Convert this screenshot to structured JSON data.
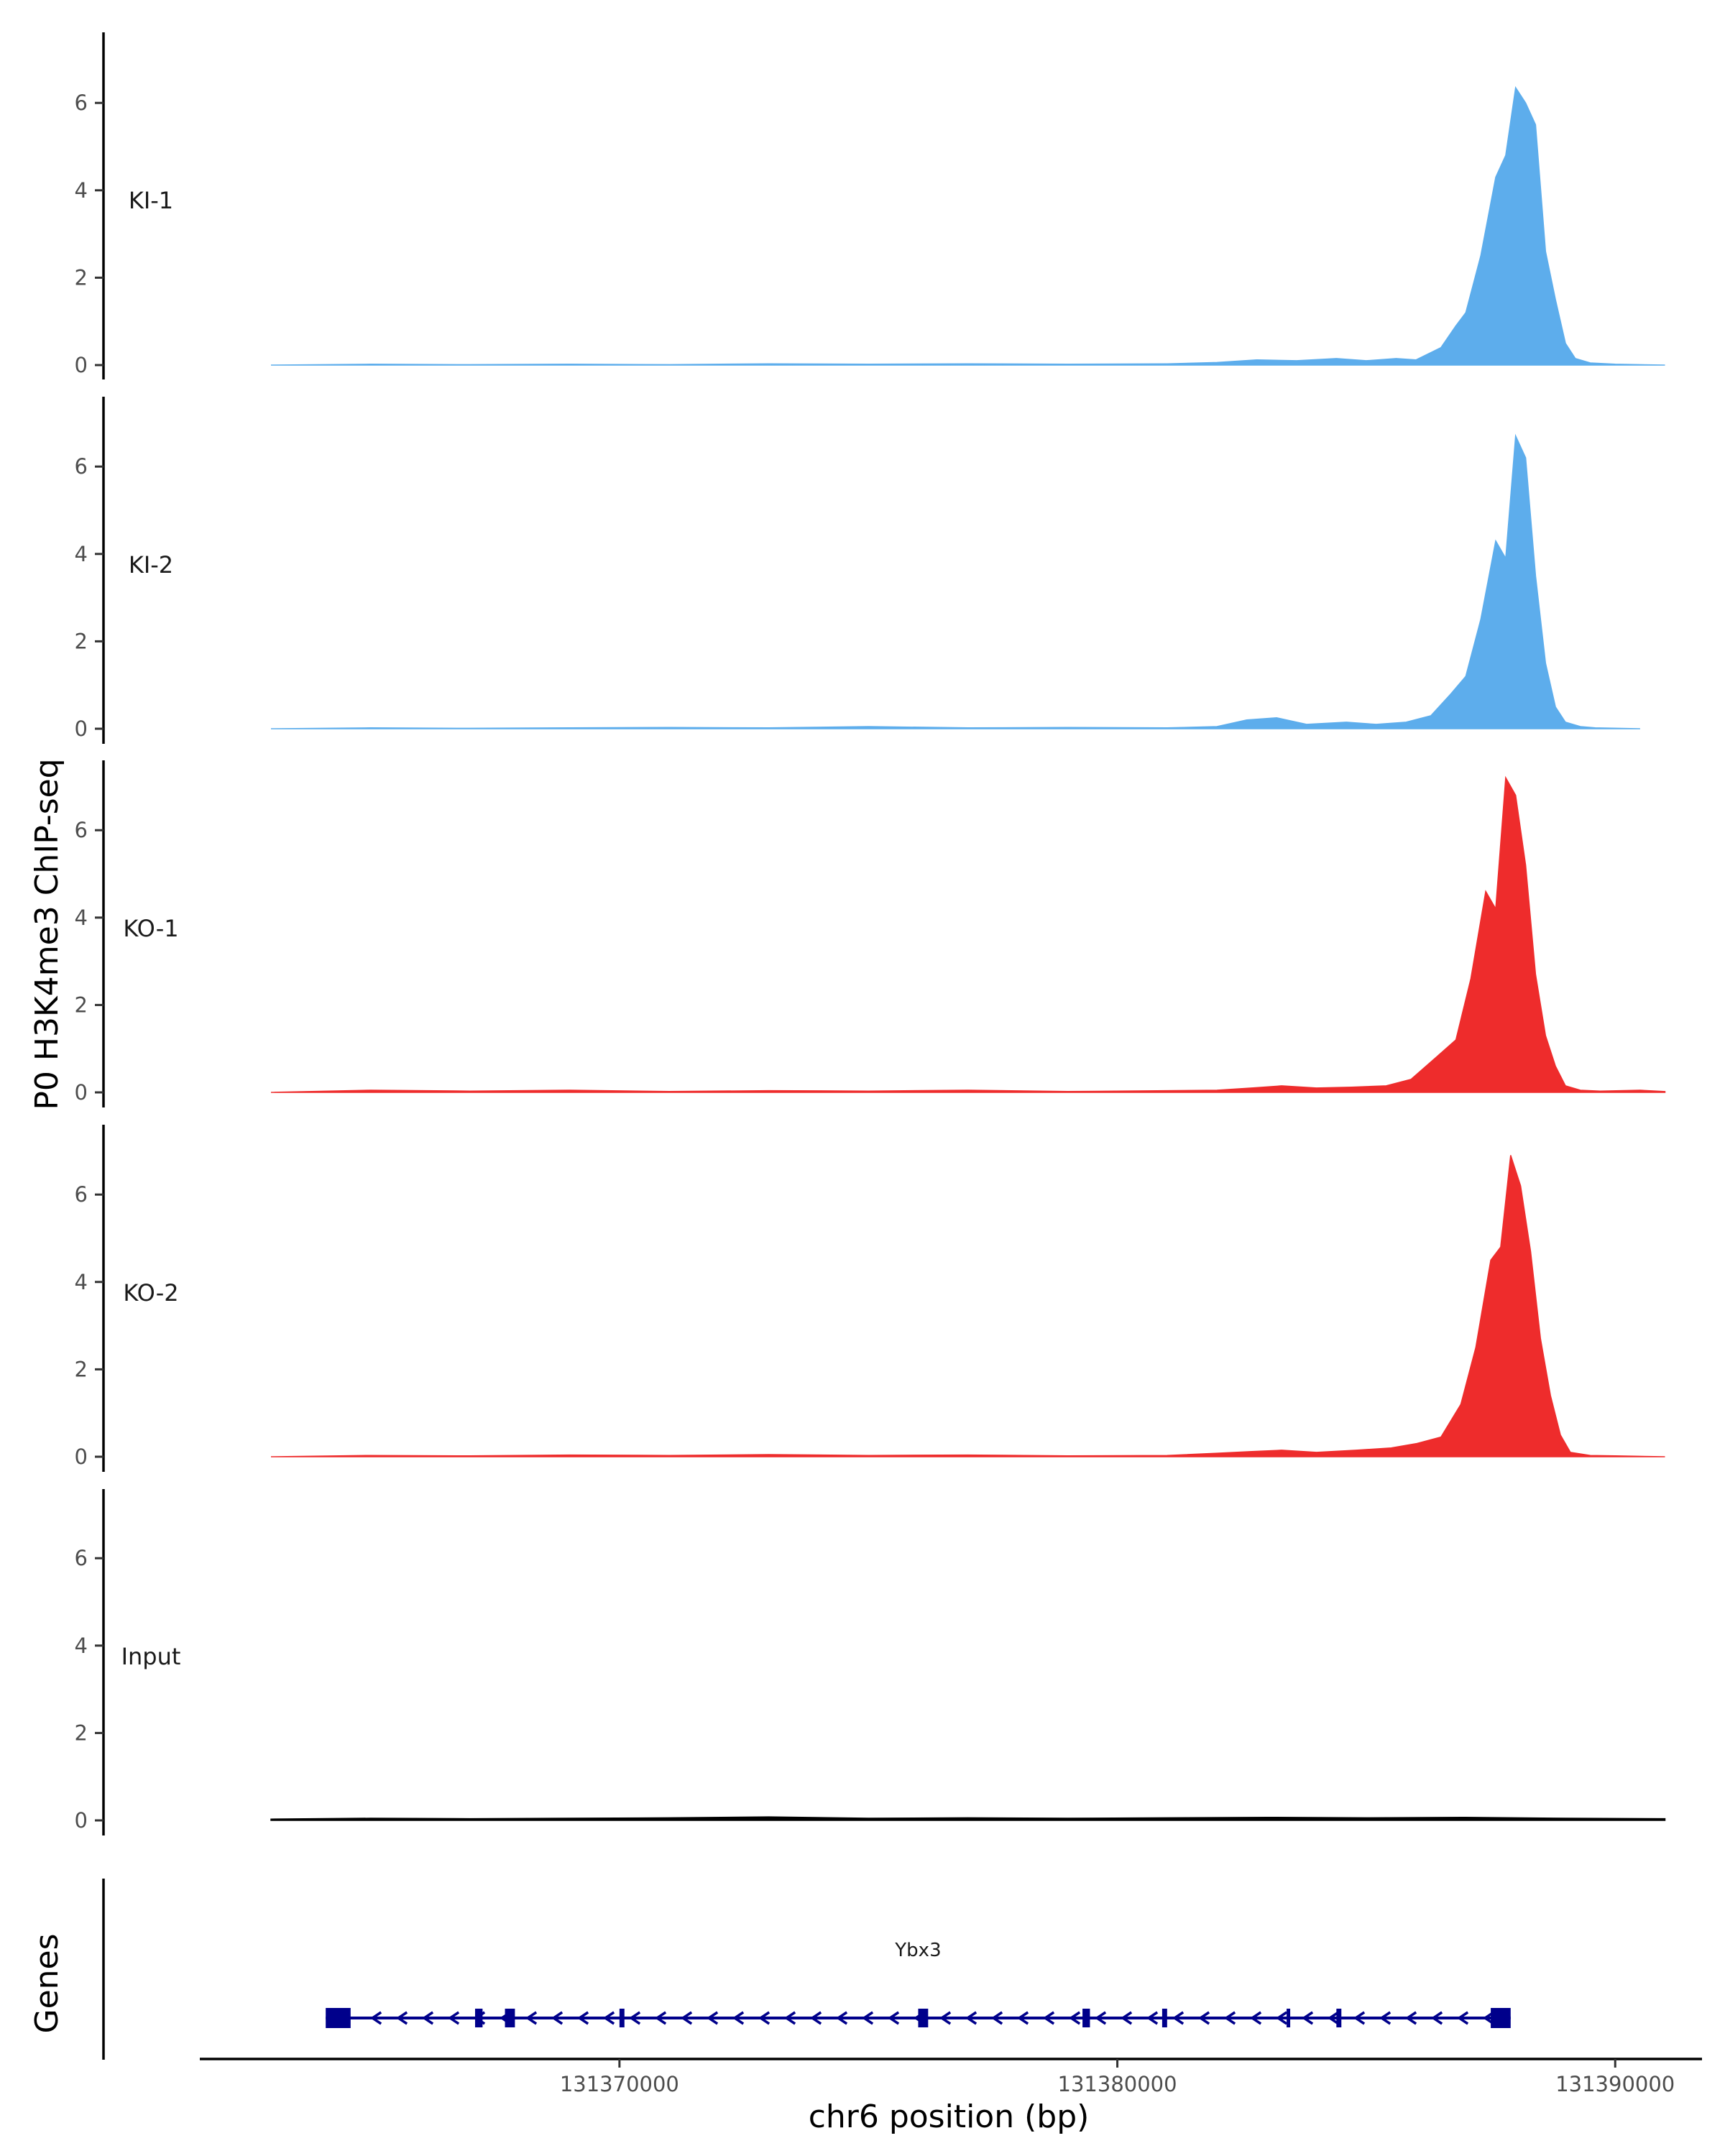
{
  "chart_data": {
    "type": "area",
    "ylabel": "P0 H3K4me3 ChIP-seq",
    "xlabel": "chr6 position (bp)",
    "ylim": [
      0,
      7.5
    ],
    "y_ticks": [
      0,
      2,
      4,
      6
    ],
    "x_ticks": [
      131370000,
      131380000,
      131390000
    ],
    "xlim": [
      131361600,
      131391700
    ],
    "grid": false,
    "tracks": [
      {
        "name": "KI-1",
        "color": "#5DADEC",
        "x": [
          131363000,
          131365000,
          131367000,
          131369000,
          131371000,
          131373000,
          131375000,
          131377000,
          131379000,
          131381000,
          131382000,
          131382800,
          131383600,
          131384400,
          131385000,
          131385600,
          131386000,
          131386500,
          131386800,
          131387000,
          131387300,
          131387600,
          131387800,
          131388000,
          131388200,
          131388400,
          131388600,
          131388800,
          131389000,
          131389200,
          131389500,
          131390000,
          131391000
        ],
        "values": [
          0.0,
          0.02,
          0.01,
          0.02,
          0.01,
          0.03,
          0.02,
          0.03,
          0.02,
          0.03,
          0.06,
          0.12,
          0.1,
          0.15,
          0.1,
          0.15,
          0.12,
          0.4,
          0.9,
          1.2,
          2.5,
          4.3,
          4.8,
          6.35,
          6.0,
          5.5,
          2.6,
          1.5,
          0.5,
          0.15,
          0.05,
          0.02,
          0.0
        ]
      },
      {
        "name": "KI-2",
        "color": "#5DADEC",
        "x": [
          131363000,
          131365000,
          131367000,
          131369000,
          131371000,
          131373000,
          131375000,
          131377000,
          131379000,
          131381000,
          131382000,
          131382600,
          131383200,
          131383800,
          131384600,
          131385200,
          131385800,
          131386300,
          131386700,
          131387000,
          131387300,
          131387600,
          131387800,
          131388000,
          131388200,
          131388400,
          131388600,
          131388800,
          131389000,
          131389300,
          131389600,
          131390500
        ],
        "values": [
          0.0,
          0.02,
          0.01,
          0.02,
          0.03,
          0.02,
          0.05,
          0.02,
          0.03,
          0.02,
          0.05,
          0.2,
          0.25,
          0.1,
          0.15,
          0.1,
          0.15,
          0.3,
          0.8,
          1.2,
          2.5,
          4.3,
          3.9,
          6.7,
          6.2,
          3.5,
          1.5,
          0.5,
          0.15,
          0.05,
          0.02,
          0.0
        ]
      },
      {
        "name": "KO-1",
        "color": "#EE2C2C",
        "x": [
          131363000,
          131365000,
          131367000,
          131369000,
          131371000,
          131373000,
          131375000,
          131377000,
          131379000,
          131381000,
          131382000,
          131382700,
          131383300,
          131384000,
          131384700,
          131385400,
          131385900,
          131386400,
          131386800,
          131387100,
          131387400,
          131387600,
          131387800,
          131388000,
          131388200,
          131388400,
          131388600,
          131388800,
          131389000,
          131389300,
          131389700,
          131390500,
          131391000
        ],
        "values": [
          0.0,
          0.05,
          0.03,
          0.05,
          0.02,
          0.04,
          0.03,
          0.05,
          0.02,
          0.04,
          0.05,
          0.1,
          0.15,
          0.1,
          0.12,
          0.15,
          0.3,
          0.8,
          1.2,
          2.6,
          4.6,
          4.2,
          7.2,
          6.8,
          5.2,
          2.7,
          1.3,
          0.6,
          0.15,
          0.05,
          0.03,
          0.05,
          0.02
        ]
      },
      {
        "name": "KO-2",
        "color": "#EE2C2C",
        "x": [
          131363000,
          131365000,
          131367000,
          131369000,
          131371000,
          131373000,
          131375000,
          131377000,
          131379000,
          131381000,
          131382000,
          131382700,
          131383300,
          131384000,
          131384800,
          131385500,
          131386000,
          131386500,
          131386900,
          131387200,
          131387500,
          131387700,
          131387900,
          131388100,
          131388300,
          131388500,
          131388700,
          131388900,
          131389100,
          131389500,
          131390000,
          131391000
        ],
        "values": [
          0.0,
          0.03,
          0.02,
          0.04,
          0.03,
          0.05,
          0.03,
          0.04,
          0.02,
          0.03,
          0.08,
          0.12,
          0.15,
          0.1,
          0.15,
          0.2,
          0.3,
          0.45,
          1.2,
          2.5,
          4.5,
          4.8,
          6.9,
          6.2,
          4.7,
          2.7,
          1.4,
          0.5,
          0.1,
          0.03,
          0.02,
          0.0
        ]
      },
      {
        "name": "Input",
        "color": "#000000",
        "x": [
          131363000,
          131365000,
          131367000,
          131369000,
          131371000,
          131373000,
          131375000,
          131377000,
          131379000,
          131381000,
          131383000,
          131385000,
          131387000,
          131389000,
          131391000
        ],
        "values": [
          0.03,
          0.05,
          0.04,
          0.05,
          0.06,
          0.08,
          0.05,
          0.06,
          0.05,
          0.06,
          0.07,
          0.06,
          0.07,
          0.05,
          0.04
        ]
      }
    ],
    "gene_track": {
      "ylabel": "Genes",
      "color": "#00008B",
      "gene": {
        "name": "Ybx3",
        "start": 131364100,
        "end": 131387900,
        "strand": "-",
        "exons": [
          [
            131364100,
            131364600
          ],
          [
            131367100,
            131367250
          ],
          [
            131367700,
            131367900
          ],
          [
            131370000,
            131370100
          ],
          [
            131376000,
            131376200
          ],
          [
            131379300,
            131379450
          ],
          [
            131380900,
            131381000
          ],
          [
            131383400,
            131383460
          ],
          [
            131384400,
            131384500
          ],
          [
            131387500,
            131387900
          ]
        ]
      }
    }
  }
}
